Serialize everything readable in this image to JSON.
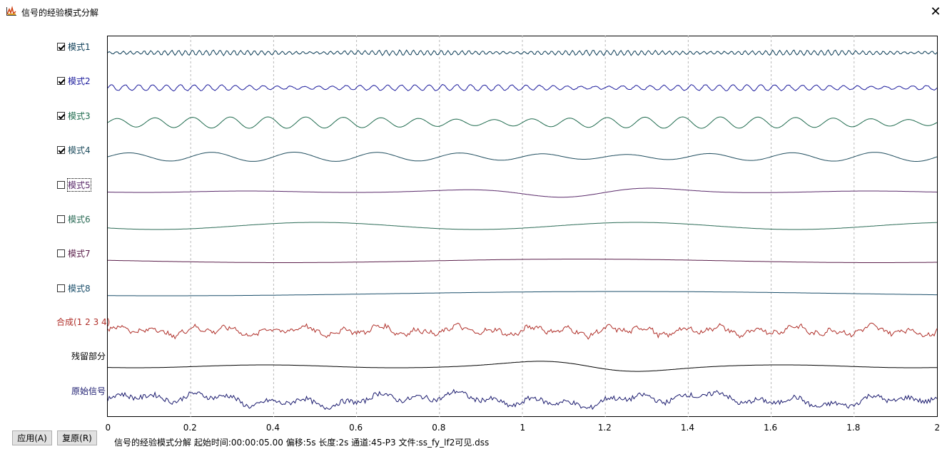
{
  "window": {
    "title": "信号的经验模式分解",
    "close_glyph": "✕",
    "icon": "chart-app-icon"
  },
  "modes": [
    {
      "label": "模式1",
      "checked": true,
      "color": "#0a3b55"
    },
    {
      "label": "模式2",
      "checked": true,
      "color": "#1b1b9c"
    },
    {
      "label": "模式3",
      "checked": true,
      "color": "#1f6b4e"
    },
    {
      "label": "模式4",
      "checked": true,
      "color": "#1f4d5e"
    },
    {
      "label": "模式5",
      "checked": false,
      "color": "#5a2a6a"
    },
    {
      "label": "模式6",
      "checked": false,
      "color": "#2a6a55"
    },
    {
      "label": "模式7",
      "checked": false,
      "color": "#5a1e4a"
    },
    {
      "label": "模式8",
      "checked": false,
      "color": "#1a4e6a"
    }
  ],
  "composite": {
    "label": "合成(1 2 3 4)",
    "color": "#b0302a"
  },
  "residual": {
    "label": "残留部分",
    "color": "#000000"
  },
  "original": {
    "label": "原始信号",
    "color": "#1a1a6e"
  },
  "buttons": {
    "apply": "应用(A)",
    "restore": "复原(R)"
  },
  "status": "信号的经验模式分解  起始时间:00:00:05.00 偏移:5s 长度:2s 通道:45-P3 文件:ss_fy_lf2可见.dss",
  "chart_data": {
    "type": "line",
    "xlim": [
      0,
      2
    ],
    "x_ticks": [
      "0",
      "0.2",
      "0.4",
      "0.6",
      "0.8",
      "1",
      "1.2",
      "1.4",
      "1.6",
      "1.8",
      "2"
    ],
    "grid": "vertical dashed",
    "series": [
      {
        "name": "模式1"
      },
      {
        "name": "模式2"
      },
      {
        "name": "模式3"
      },
      {
        "name": "模式4"
      },
      {
        "name": "模式5"
      },
      {
        "name": "模式6"
      },
      {
        "name": "模式7"
      },
      {
        "name": "模式8"
      },
      {
        "name": "合成(1 2 3 4)"
      },
      {
        "name": "残留部分"
      },
      {
        "name": "原始信号"
      }
    ]
  }
}
